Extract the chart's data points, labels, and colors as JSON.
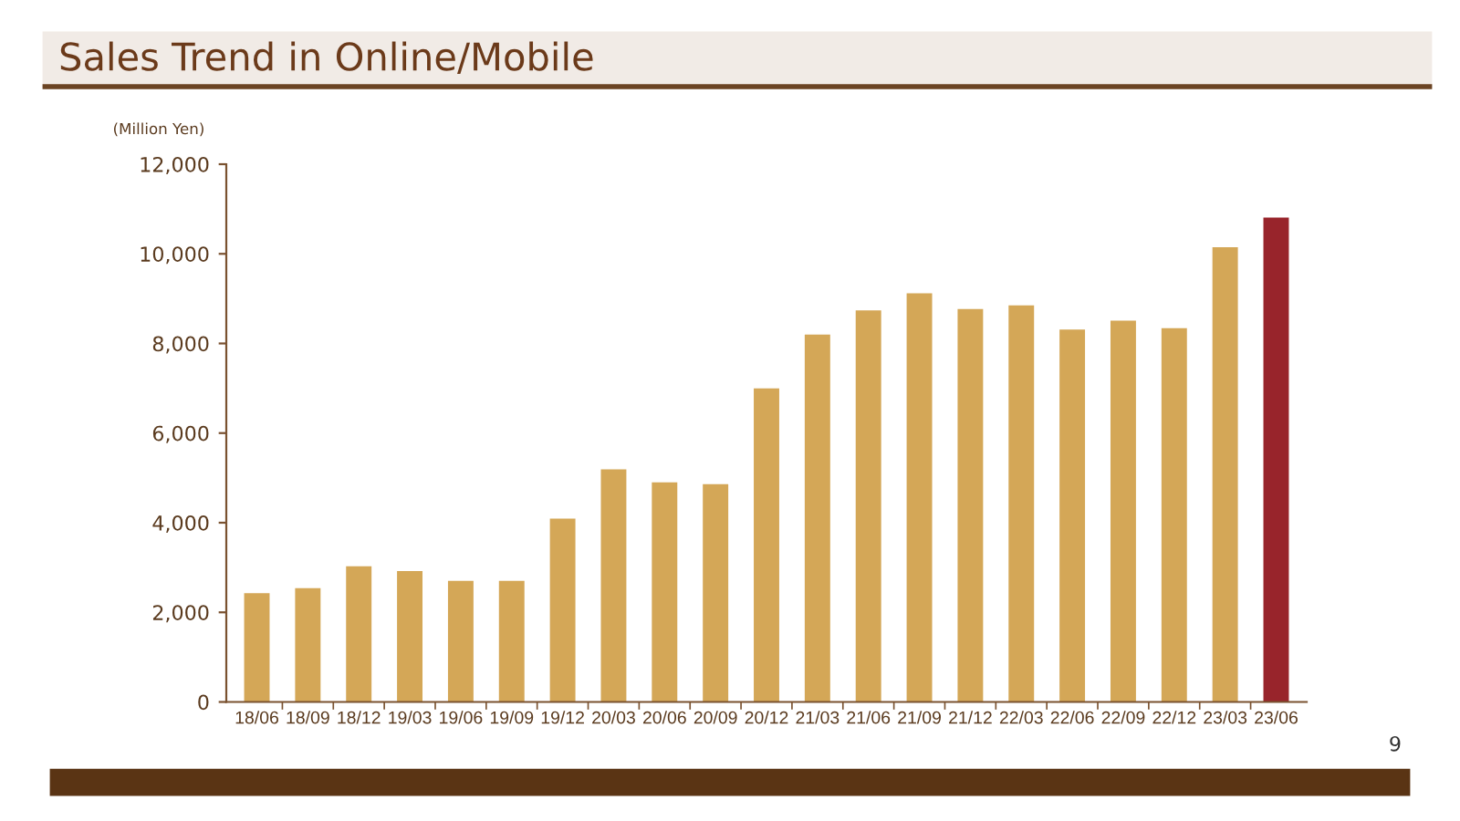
{
  "chart_data": {
    "type": "bar",
    "title": "Sales Trend in Online/Mobile",
    "ylabel": "(Million Yen)",
    "categories": [
      "18/06",
      "18/09",
      "18/12",
      "19/03",
      "19/06",
      "19/09",
      "19/12",
      "20/03",
      "20/06",
      "20/09",
      "20/12",
      "21/03",
      "21/06",
      "21/09",
      "21/12",
      "22/03",
      "22/06",
      "22/09",
      "22/12",
      "23/03",
      "23/06"
    ],
    "values": [
      2430,
      2540,
      3030,
      2920,
      2700,
      2700,
      4090,
      5190,
      4900,
      4860,
      7000,
      8200,
      8740,
      9120,
      8770,
      8850,
      8310,
      8510,
      8340,
      10150,
      10810
    ],
    "colors": [
      "#d4a757",
      "#d4a757",
      "#d4a757",
      "#d4a757",
      "#d4a757",
      "#d4a757",
      "#d4a757",
      "#d4a757",
      "#d4a757",
      "#d4a757",
      "#d4a757",
      "#d4a757",
      "#d4a757",
      "#d4a757",
      "#d4a757",
      "#d4a757",
      "#d4a757",
      "#d4a757",
      "#d4a757",
      "#d4a757",
      "#98242b"
    ],
    "ylim": [
      0,
      12000
    ],
    "yticks": [
      {
        "value": 0,
        "label": "0"
      },
      {
        "value": 2000,
        "label": "2,000"
      },
      {
        "value": 4000,
        "label": "4,000"
      },
      {
        "value": 6000,
        "label": "6,000"
      },
      {
        "value": 8000,
        "label": "8,000"
      },
      {
        "value": 10000,
        "label": "10,000"
      },
      {
        "value": 12000,
        "label": "12,000"
      }
    ],
    "grid": false,
    "annotations": [
      "9"
    ]
  }
}
